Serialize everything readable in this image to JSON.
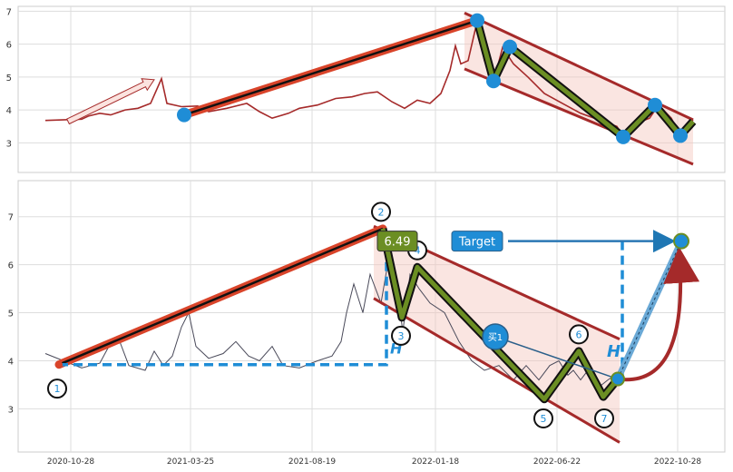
{
  "chart_data": [
    {
      "type": "line",
      "panel": "top",
      "ylim": [
        2.1,
        7.15
      ],
      "yticks": [
        3,
        4,
        5,
        6,
        7
      ],
      "xlim": [
        0,
        756
      ],
      "grid": true,
      "series": [
        {
          "color": "#a52a2a",
          "points": [
            [
              0,
              3.68
            ],
            [
              40,
              3.72
            ],
            [
              48,
              3.82
            ],
            [
              60,
              3.9
            ],
            [
              72,
              3.85
            ],
            [
              88,
              4.0
            ],
            [
              102,
              4.05
            ],
            [
              116,
              4.2
            ],
            [
              128,
              4.95
            ],
            [
              134,
              4.2
            ],
            [
              150,
              4.1
            ],
            [
              168,
              4.12
            ],
            [
              180,
              3.95
            ],
            [
              200,
              4.05
            ],
            [
              222,
              4.2
            ],
            [
              236,
              3.95
            ],
            [
              250,
              3.75
            ],
            [
              268,
              3.9
            ],
            [
              280,
              4.05
            ],
            [
              300,
              4.15
            ],
            [
              320,
              4.35
            ],
            [
              338,
              4.4
            ],
            [
              352,
              4.5
            ],
            [
              366,
              4.55
            ],
            [
              382,
              4.25
            ],
            [
              396,
              4.05
            ],
            [
              410,
              4.3
            ],
            [
              424,
              4.2
            ],
            [
              436,
              4.5
            ],
            [
              446,
              5.2
            ],
            [
              452,
              5.95
            ],
            [
              458,
              5.4
            ],
            [
              466,
              5.5
            ],
            [
              476,
              6.7
            ],
            [
              484,
              5.5
            ],
            [
              494,
              4.85
            ],
            [
              504,
              5.9
            ],
            [
              516,
              5.4
            ],
            [
              532,
              5.0
            ],
            [
              550,
              4.5
            ],
            [
              570,
              4.2
            ],
            [
              590,
              3.9
            ],
            [
              610,
              3.7
            ],
            [
              630,
              3.5
            ],
            [
              638,
              3.15
            ],
            [
              652,
              3.6
            ],
            [
              666,
              3.75
            ],
            [
              676,
              4.15
            ],
            [
              690,
              3.75
            ],
            [
              700,
              3.2
            ],
            [
              714,
              3.7
            ]
          ]
        }
      ],
      "annotations": {
        "points": [
          [
            153,
            3.85
          ],
          [
            476,
            6.72
          ],
          [
            494,
            4.88
          ],
          [
            512,
            5.92
          ],
          [
            637,
            3.18
          ],
          [
            672,
            4.15
          ],
          [
            700,
            3.22
          ]
        ],
        "trend_line": [
          [
            153,
            3.85
          ],
          [
            476,
            6.72
          ]
        ],
        "zigzag": [
          [
            476,
            6.72
          ],
          [
            494,
            4.88
          ],
          [
            512,
            5.92
          ],
          [
            637,
            3.18
          ],
          [
            672,
            4.15
          ],
          [
            700,
            3.22
          ],
          [
            714,
            3.65
          ]
        ],
        "channel_upper": [
          [
            462,
            6.95
          ],
          [
            714,
            3.7
          ]
        ],
        "channel_lower": [
          [
            462,
            5.25
          ],
          [
            714,
            2.35
          ]
        ],
        "arrow": [
          [
            25,
            3.65
          ],
          [
            120,
            4.92
          ]
        ]
      }
    },
    {
      "type": "line",
      "panel": "bottom",
      "ylim": [
        2.1,
        7.75
      ],
      "yticks": [
        3,
        4,
        5,
        6,
        7
      ],
      "xlim": [
        0,
        756
      ],
      "xticks": [
        {
          "pos": 28,
          "label": "2020-10-28"
        },
        {
          "pos": 160,
          "label": "2021-03-25"
        },
        {
          "pos": 294,
          "label": "2021-08-19"
        },
        {
          "pos": 430,
          "label": "2022-01-18"
        },
        {
          "pos": 564,
          "label": "2022-06-22"
        },
        {
          "pos": 697,
          "label": "2022-10-28"
        }
      ],
      "grid": true,
      "series": [
        {
          "color": "#4a4a5a",
          "points": [
            [
              0,
              4.15
            ],
            [
              20,
              4.0
            ],
            [
              40,
              3.85
            ],
            [
              60,
              3.95
            ],
            [
              70,
              4.3
            ],
            [
              80,
              4.5
            ],
            [
              92,
              3.9
            ],
            [
              110,
              3.8
            ],
            [
              120,
              4.2
            ],
            [
              130,
              3.9
            ],
            [
              140,
              4.1
            ],
            [
              150,
              4.7
            ],
            [
              158,
              5.0
            ],
            [
              166,
              4.3
            ],
            [
              180,
              4.05
            ],
            [
              196,
              4.15
            ],
            [
              210,
              4.4
            ],
            [
              224,
              4.1
            ],
            [
              236,
              4.0
            ],
            [
              250,
              4.3
            ],
            [
              262,
              3.9
            ],
            [
              280,
              3.85
            ],
            [
              300,
              4.0
            ],
            [
              316,
              4.1
            ],
            [
              326,
              4.4
            ],
            [
              332,
              5.0
            ],
            [
              340,
              5.6
            ],
            [
              350,
              5.0
            ],
            [
              358,
              5.8
            ],
            [
              370,
              5.2
            ],
            [
              380,
              6.3
            ],
            [
              390,
              5.2
            ],
            [
              394,
              4.6
            ],
            [
              402,
              5.8
            ],
            [
              412,
              5.5
            ],
            [
              424,
              5.2
            ],
            [
              440,
              5.0
            ],
            [
              456,
              4.4
            ],
            [
              470,
              4.0
            ],
            [
              484,
              3.8
            ],
            [
              500,
              3.9
            ],
            [
              516,
              3.6
            ],
            [
              530,
              3.9
            ],
            [
              544,
              3.6
            ],
            [
              556,
              3.9
            ],
            [
              566,
              4.0
            ],
            [
              576,
              3.7
            ],
            [
              582,
              3.8
            ],
            [
              590,
              3.6
            ],
            [
              600,
              3.85
            ],
            [
              610,
              3.45
            ],
            [
              620,
              3.6
            ],
            [
              628,
              3.7
            ]
          ]
        }
      ],
      "annotations": {
        "labels": [
          {
            "text": "1",
            "x": 13,
            "y": 3.42
          },
          {
            "text": "2",
            "x": 370,
            "y": 7.1
          },
          {
            "text": "3",
            "x": 392,
            "y": 4.52
          },
          {
            "text": "4",
            "x": 410,
            "y": 6.3
          },
          {
            "text": "5",
            "x": 549,
            "y": 2.8
          },
          {
            "text": "6",
            "x": 588,
            "y": 4.55
          },
          {
            "text": "7",
            "x": 616,
            "y": 2.8
          }
        ],
        "zigzag": [
          [
            15,
            3.92
          ],
          [
            372,
            6.75
          ],
          [
            393,
            4.9
          ],
          [
            410,
            5.95
          ],
          [
            550,
            3.2
          ],
          [
            588,
            4.2
          ],
          [
            615,
            3.25
          ],
          [
            631,
            3.62
          ]
        ],
        "support_line": [
          [
            15,
            3.92
          ],
          [
            372,
            3.92
          ]
        ],
        "h_marker_1": "H",
        "h_marker_2": "H",
        "price_box": "6.49",
        "buy_label": "买1",
        "target_label": "Target",
        "target_point": [
          701,
          6.49
        ],
        "buy_point": [
          496,
          4.5
        ],
        "entry_point": [
          631,
          3.62
        ]
      }
    }
  ]
}
